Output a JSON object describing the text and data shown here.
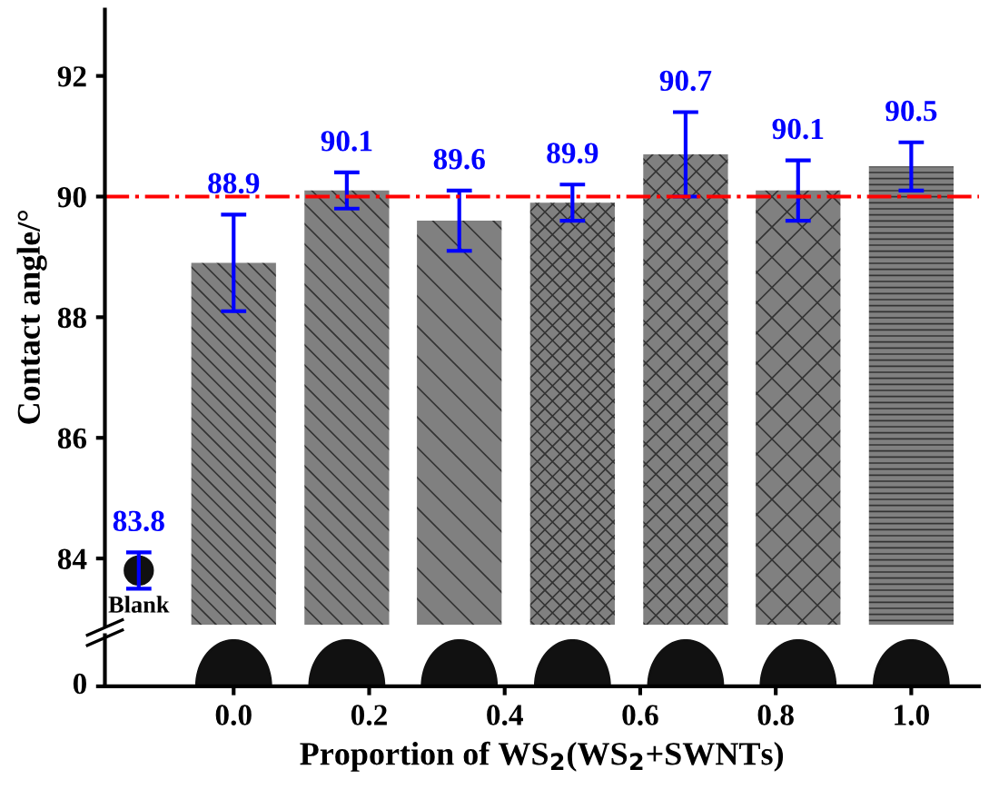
{
  "chart_data": {
    "type": "bar",
    "ylabel": "Contact angle/°",
    "xlabel": "Proportion of WS$_{2}$(WS$_{2}$+SWNTs)",
    "series": [
      {
        "color": "#808080",
        "x": [
          0,
          0.167,
          0.333,
          0.5,
          0.667,
          0.833,
          1.0
        ],
        "values": [
          88.9,
          90.1,
          89.6,
          89.9,
          90.7,
          90.1,
          90.5
        ],
        "errors": [
          0.8,
          0.3,
          0.5,
          0.3,
          0.7,
          0.5,
          0.4
        ]
      },
      {
        "type": "scatter",
        "color": "#111111",
        "marker": "circle",
        "x": [
          -0.14
        ],
        "values": [
          83.8
        ],
        "errors": [
          0.3
        ]
      }
    ],
    "data_labels": true,
    "xlim": [
      -0.19,
      1.1
    ],
    "xticks": [
      {
        "value": 0,
        "label": "0.0"
      },
      {
        "value": 0.2,
        "label": "0.2"
      },
      {
        "value": 0.4,
        "label": "0.4"
      },
      {
        "value": 0.6,
        "label": "0.6"
      },
      {
        "value": 0.8,
        "label": "0.8"
      },
      {
        "value": 1.0,
        "label": "1.0"
      }
    ],
    "ylim": [
      82.9,
      93.1
    ],
    "yticks": [
      84,
      86,
      88,
      90,
      92
    ],
    "ref_lines": [
      {
        "axis": "y",
        "value": 90,
        "color": "#ff0000",
        "line_style": "dashdot"
      }
    ],
    "annotations": [
      "Blank",
      "0"
    ]
  }
}
